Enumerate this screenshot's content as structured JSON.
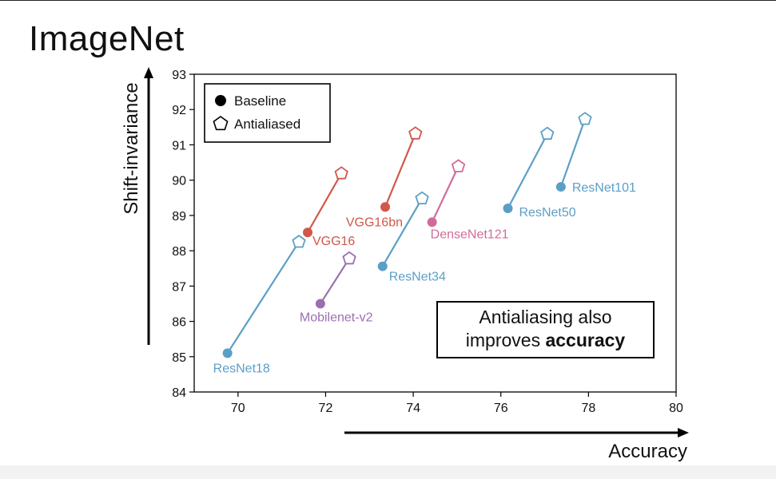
{
  "slide": {
    "title": "ImageNet"
  },
  "note": {
    "line1": "Antialiasing also",
    "line2_prefix": "improves ",
    "line2_bold": "accuracy"
  },
  "chart_data": {
    "type": "scatter",
    "xlabel": "Accuracy",
    "ylabel": "Shift-invariance",
    "xlim": [
      69,
      80
    ],
    "ylim": [
      84,
      93
    ],
    "xticks": [
      70,
      72,
      74,
      76,
      78,
      80
    ],
    "yticks": [
      84,
      85,
      86,
      87,
      88,
      89,
      90,
      91,
      92,
      93
    ],
    "legend": {
      "position": "top-left",
      "entries": [
        {
          "label": "Baseline",
          "marker": "circle"
        },
        {
          "label": "Antialiased",
          "marker": "pentagon"
        }
      ]
    },
    "grid": false,
    "series": [
      {
        "name": "ResNet18",
        "color": "#5b9fc6",
        "baseline": [
          69.76,
          85.1
        ],
        "antialiased": [
          71.39,
          88.25
        ]
      },
      {
        "name": "VGG16",
        "color": "#d0584a",
        "baseline": [
          71.59,
          88.52
        ],
        "antialiased": [
          72.36,
          90.19
        ]
      },
      {
        "name": "VGG16bn",
        "color": "#d0584a",
        "baseline": [
          73.36,
          89.24
        ],
        "antialiased": [
          74.05,
          91.32
        ]
      },
      {
        "name": "Mobilenet-v2",
        "color": "#9b6fb0",
        "baseline": [
          71.88,
          86.5
        ],
        "antialiased": [
          72.54,
          87.78
        ]
      },
      {
        "name": "ResNet34",
        "color": "#5b9fc6",
        "baseline": [
          73.3,
          87.56
        ],
        "antialiased": [
          74.2,
          89.48
        ]
      },
      {
        "name": "DenseNet121",
        "color": "#d26b9a",
        "baseline": [
          74.43,
          88.81
        ],
        "antialiased": [
          75.03,
          90.39
        ]
      },
      {
        "name": "ResNet50",
        "color": "#5b9fc6",
        "baseline": [
          76.16,
          89.2
        ],
        "antialiased": [
          77.06,
          91.31
        ]
      },
      {
        "name": "ResNet101",
        "color": "#5b9fc6",
        "baseline": [
          77.37,
          89.81
        ],
        "antialiased": [
          77.92,
          91.73
        ]
      }
    ]
  }
}
